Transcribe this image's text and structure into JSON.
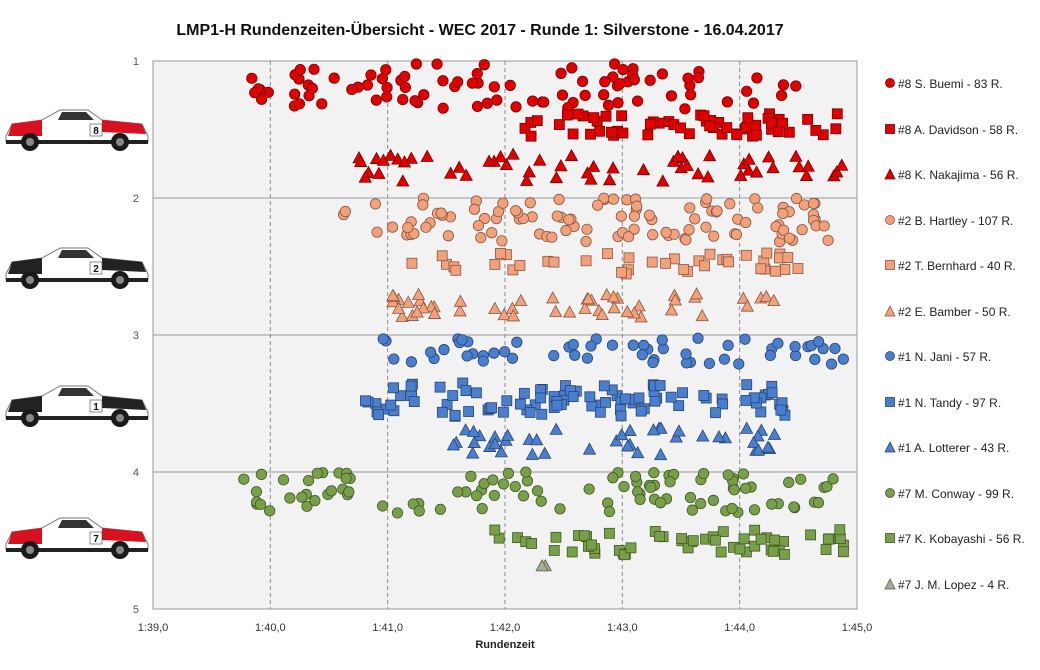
{
  "title": "LMP1-H  Rundenzeiten-Übersicht  - WEC 2017  - Runde  1: Silverstone   - 16.04.2017",
  "chart_data": {
    "type": "scatter",
    "title": "LMP1-H  Rundenzeiten-Übersicht  - WEC 2017  - Runde  1: Silverstone   - 16.04.2017",
    "xlabel": "Rundenzeit",
    "ylabel": "",
    "x_ticks": [
      "1:39,0",
      "1:40,0",
      "1:41,0",
      "1:42,0",
      "1:43,0",
      "1:44,0",
      "1:45,0"
    ],
    "y_ticks": [
      "1",
      "2",
      "3",
      "4",
      "5"
    ],
    "xlim_seconds": [
      99.0,
      105.0
    ],
    "ylim": [
      1,
      5
    ],
    "y_inverted": true,
    "x_grid": "dashed vertical",
    "y_grid": "solid horizontal",
    "legend_position": "right",
    "series": [
      {
        "name": "#8 S. Buemi - 83 R.",
        "marker": "circle",
        "color": "#e00000",
        "band": 1,
        "laps": 83
      },
      {
        "name": "#8 A. Davidson - 58 R.",
        "marker": "square",
        "color": "#e00000",
        "band": 1,
        "laps": 58
      },
      {
        "name": "#8 K. Nakajima - 56 R.",
        "marker": "triangle",
        "color": "#e00000",
        "band": 1,
        "laps": 56
      },
      {
        "name": "#2 B. Hartley - 107 R.",
        "marker": "circle",
        "color": "#f4a07a",
        "band": 2,
        "laps": 107
      },
      {
        "name": "#2 T. Bernhard - 40 R.",
        "marker": "square",
        "color": "#f4a07a",
        "band": 2,
        "laps": 40
      },
      {
        "name": "#2 E. Bamber - 50 R.",
        "marker": "triangle",
        "color": "#f4a07a",
        "band": 2,
        "laps": 50
      },
      {
        "name": "#1 N. Jani - 57 R.",
        "marker": "circle",
        "color": "#4a7fd0",
        "band": 3,
        "laps": 57
      },
      {
        "name": "#1 N. Tandy - 97 R.",
        "marker": "square",
        "color": "#4a7fd0",
        "band": 3,
        "laps": 97
      },
      {
        "name": "#1 A. Lotterer - 43 R.",
        "marker": "triangle",
        "color": "#4a7fd0",
        "band": 3,
        "laps": 43
      },
      {
        "name": "#7 M. Conway - 99 R.",
        "marker": "circle",
        "color": "#78a048",
        "band": 4,
        "laps": 99
      },
      {
        "name": "#7 K. Kobayashi - 56 R.",
        "marker": "square",
        "color": "#78a048",
        "band": 4,
        "laps": 56
      },
      {
        "name": "#7 J. M. Lopez - 4 R.",
        "marker": "triangle",
        "color": "#a0b090",
        "band": 4,
        "laps": 4
      }
    ]
  },
  "legend": [
    "#8 S. Buemi - 83 R.",
    "#8 A. Davidson - 58 R.",
    "#8 K. Nakajima - 56 R.",
    "#2 B. Hartley - 107 R.",
    "#2 T. Bernhard - 40 R.",
    "#2 E. Bamber - 50 R.",
    "#1 N. Jani - 57 R.",
    "#1 N. Tandy - 97 R.",
    "#1 A. Lotterer - 43 R.",
    "#7 M. Conway - 99 R.",
    "#7 K. Kobayashi - 56 R.",
    "#7 J. M. Lopez - 4 R."
  ],
  "cars": [
    {
      "number": "8",
      "body": "#ffffff",
      "accent": "#d81020"
    },
    {
      "number": "2",
      "body": "#ffffff",
      "accent": "#222222"
    },
    {
      "number": "1",
      "body": "#ffffff",
      "accent": "#222222"
    },
    {
      "number": "7",
      "body": "#ffffff",
      "accent": "#d81020"
    }
  ]
}
